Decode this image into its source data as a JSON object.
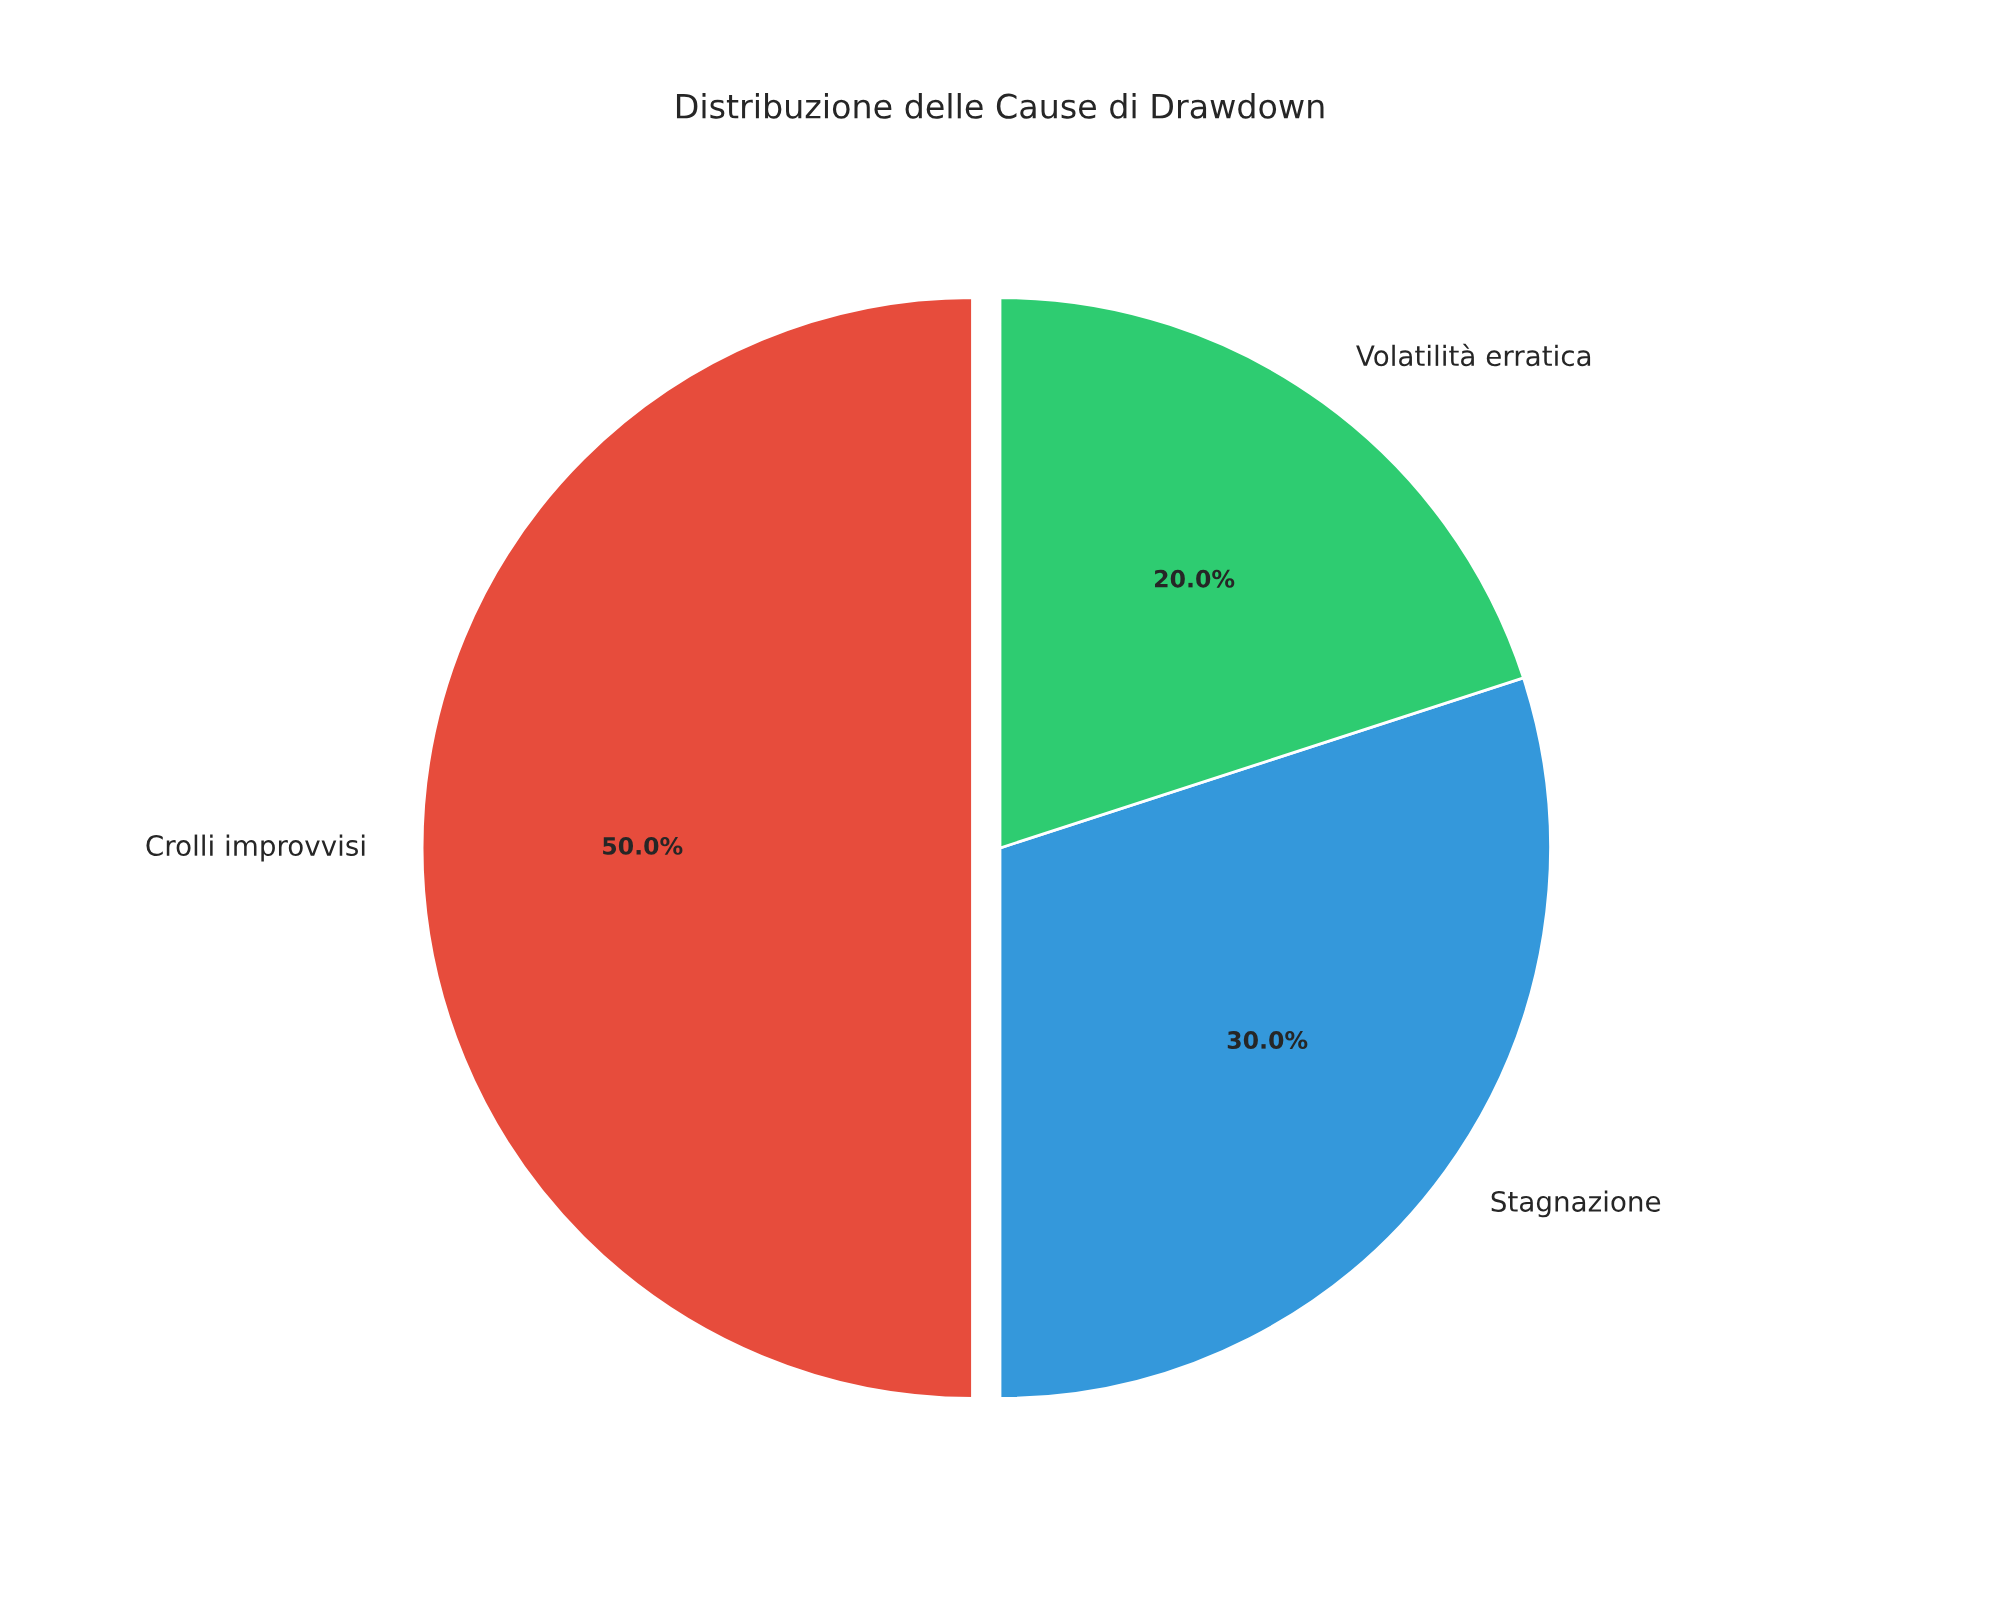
{
  "chart_data": {
    "type": "pie",
    "title": "Distribuzione delle Cause di Drawdown",
    "categories": [
      "Crolli improvvisi",
      "Stagnazione",
      "Volatilità erratica"
    ],
    "values": [
      50,
      30,
      20
    ],
    "colors": [
      "#e74c3c",
      "#3498db",
      "#2ecc71"
    ],
    "value_labels": [
      "50.0%",
      "30.0%",
      "20.0%"
    ]
  }
}
